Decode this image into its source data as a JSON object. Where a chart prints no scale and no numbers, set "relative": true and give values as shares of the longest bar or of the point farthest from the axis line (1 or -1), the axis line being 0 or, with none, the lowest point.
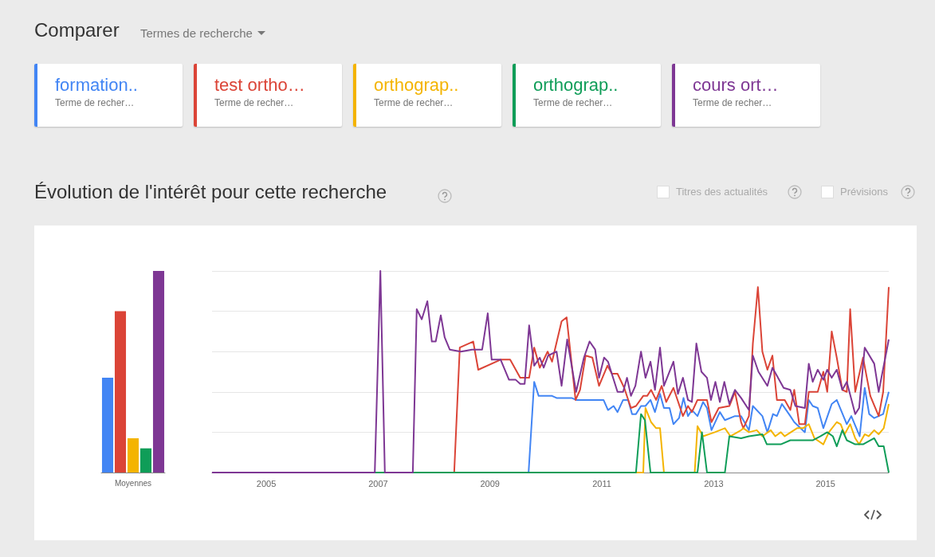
{
  "chart_data": [
    {
      "type": "line",
      "title": "Évolution de l'intérêt pour cette recherche",
      "relative": true,
      "grid": "y",
      "legend": "top",
      "marker": "none",
      "line_style": "solid",
      "annotations": [
        "Comparer",
        "Termes de recherche",
        "Titres des actualités",
        "Prévisions",
        "Terme de recher…",
        "Terme de recher…",
        "Terme de recher…",
        "Terme de recher…",
        "Terme de recher…"
      ],
      "xlim": [
        2004.03,
        2016.13
      ],
      "xticks": [
        2005,
        2007,
        2009,
        2011,
        2013,
        2015
      ],
      "series": [
        {
          "name": "formation..",
          "color": "#4285f4",
          "x": [
            2004.03,
            2009.69,
            2009.79,
            2009.87,
            2010.11,
            2010.19,
            2010.46,
            2010.54,
            2011.03,
            2011.11,
            2011.21,
            2011.28,
            2011.38,
            2011.47,
            2011.54,
            2011.61,
            2011.7,
            2011.78,
            2011.87,
            2011.95,
            2012.04,
            2012.11,
            2012.21,
            2012.28,
            2012.38,
            2012.46,
            2012.54,
            2012.61,
            2012.71,
            2012.81,
            2012.88,
            2012.96,
            2013.11,
            2013.2,
            2013.38,
            2013.49,
            2013.63,
            2013.7,
            2013.87,
            2013.96,
            2014.06,
            2014.13,
            2014.22,
            2014.37,
            2014.44,
            2014.63,
            2014.7,
            2014.77,
            2014.86,
            2014.96,
            2015.11,
            2015.2,
            2015.29,
            2015.38,
            2015.46,
            2015.61,
            2015.7,
            2015.78,
            2015.87,
            2016.03,
            2016.13
          ],
          "values": [
            0,
            0,
            0.45,
            0.38,
            0.38,
            0.37,
            0.37,
            0.36,
            0.36,
            0.31,
            0.33,
            0.3,
            0.36,
            0.36,
            0.29,
            0.29,
            0.33,
            0.33,
            0.36,
            0.3,
            0.39,
            0.32,
            0.32,
            0.24,
            0.27,
            0.37,
            0.28,
            0.31,
            0.28,
            0.35,
            0.32,
            0.21,
            0.3,
            0.26,
            0.28,
            0.28,
            0.21,
            0.33,
            0.28,
            0.2,
            0.29,
            0.28,
            0.34,
            0.28,
            0.25,
            0.2,
            0.36,
            0.33,
            0.32,
            0.22,
            0.34,
            0.36,
            0.3,
            0.24,
            0.28,
            0.18,
            0.42,
            0.29,
            0.27,
            0.29,
            0.4
          ]
        },
        {
          "name": "test ortho…",
          "color": "#db4437",
          "x": [
            2004.03,
            2008.36,
            2008.46,
            2008.7,
            2008.79,
            2009.19,
            2009.36,
            2009.54,
            2009.7,
            2009.79,
            2009.89,
            2010.03,
            2010.11,
            2010.28,
            2010.37,
            2010.53,
            2010.61,
            2010.71,
            2010.83,
            2010.95,
            2011.1,
            2011.18,
            2011.28,
            2011.4,
            2011.52,
            2011.61,
            2011.74,
            2011.81,
            2011.88,
            2011.97,
            2012.07,
            2012.15,
            2012.28,
            2012.45,
            2012.54,
            2012.61,
            2012.71,
            2012.88,
            2012.96,
            2013.09,
            2013.28,
            2013.38,
            2013.49,
            2013.53,
            2013.63,
            2013.7,
            2013.79,
            2013.87,
            2013.96,
            2014.05,
            2014.13,
            2014.27,
            2014.37,
            2014.44,
            2014.53,
            2014.63,
            2014.7,
            2014.86,
            2014.96,
            2015.03,
            2015.11,
            2015.2,
            2015.3,
            2015.38,
            2015.44,
            2015.53,
            2015.67,
            2015.8,
            2015.95,
            2016.03,
            2016.13
          ],
          "values": [
            0,
            0,
            0.62,
            0.65,
            0.51,
            0.56,
            0.56,
            0.47,
            0.47,
            0.62,
            0.52,
            0.6,
            0.55,
            0.75,
            0.77,
            0.36,
            0.41,
            0.58,
            0.57,
            0.43,
            0.53,
            0.49,
            0.49,
            0.42,
            0.32,
            0.33,
            0.38,
            0.38,
            0.41,
            0.36,
            0.43,
            0.35,
            0.42,
            0.28,
            0.33,
            0.3,
            0.36,
            0.36,
            0.25,
            0.32,
            0.33,
            0.4,
            0.25,
            0.22,
            0.28,
            0.64,
            0.92,
            0.6,
            0.51,
            0.58,
            0.36,
            0.36,
            0.31,
            0.41,
            0.24,
            0.24,
            0.4,
            0.4,
            0.5,
            0.4,
            0.7,
            0.57,
            0.41,
            0.4,
            0.81,
            0.4,
            0.57,
            0.38,
            0.28,
            0.4,
            0.92
          ]
        },
        {
          "name": "orthograp..",
          "color": "#f4b400",
          "x": [
            2004.03,
            2011.74,
            2011.78,
            2011.88,
            2011.97,
            2012.04,
            2012.11,
            2012.66,
            2012.71,
            2012.81,
            2013.02,
            2013.2,
            2013.3,
            2013.49,
            2013.53,
            2013.63,
            2013.77,
            2013.87,
            2014.02,
            2014.1,
            2014.2,
            2014.27,
            2014.49,
            2014.6,
            2014.7,
            2014.8,
            2014.96,
            2015.06,
            2015.2,
            2015.27,
            2015.34,
            2015.44,
            2015.53,
            2015.6,
            2015.7,
            2015.77,
            2015.87,
            2015.95,
            2016.04,
            2016.13
          ],
          "values": [
            0,
            0,
            0.32,
            0.25,
            0.22,
            0.22,
            0,
            0,
            0.23,
            0.18,
            0.2,
            0.22,
            0.18,
            0.21,
            0.22,
            0.2,
            0.21,
            0.18,
            0.21,
            0.18,
            0.2,
            0.18,
            0.22,
            0.22,
            0.24,
            0.17,
            0.14,
            0.2,
            0.25,
            0.24,
            0.19,
            0.24,
            0.17,
            0.14,
            0.19,
            0.18,
            0.21,
            0.19,
            0.22,
            0.34
          ]
        },
        {
          "name": "orthograp..",
          "color": "#0f9d58",
          "x": [
            2004.03,
            2011.61,
            2011.7,
            2011.77,
            2011.87,
            2012.71,
            2012.79,
            2012.88,
            2013.2,
            2013.28,
            2013.49,
            2013.63,
            2013.87,
            2013.95,
            2014.2,
            2014.37,
            2014.77,
            2014.91,
            2015.03,
            2015.13,
            2015.2,
            2015.3,
            2015.38,
            2015.53,
            2015.67,
            2015.87,
            2015.95,
            2016.04,
            2016.13
          ],
          "values": [
            0,
            0,
            0.29,
            0.26,
            0,
            0,
            0.2,
            0,
            0,
            0.18,
            0.17,
            0.18,
            0.19,
            0.14,
            0.14,
            0.16,
            0.16,
            0.18,
            0.2,
            0.18,
            0.13,
            0.21,
            0.16,
            0.14,
            0.14,
            0.17,
            0.13,
            0.13,
            0
          ]
        },
        {
          "name": "cours ort…",
          "color": "#7e3794",
          "x": [
            2004.03,
            2006.94,
            2007.04,
            2007.12,
            2007.62,
            2007.69,
            2007.78,
            2007.88,
            2007.96,
            2008.03,
            2008.12,
            2008.19,
            2008.28,
            2008.48,
            2008.68,
            2008.86,
            2008.96,
            2009.03,
            2009.19,
            2009.34,
            2009.46,
            2009.54,
            2009.62,
            2009.7,
            2009.79,
            2009.89,
            2009.96,
            2010.04,
            2010.19,
            2010.28,
            2010.38,
            2010.54,
            2010.68,
            2010.78,
            2010.88,
            2010.95,
            2011.04,
            2011.11,
            2011.28,
            2011.38,
            2011.45,
            2011.52,
            2011.6,
            2011.7,
            2011.78,
            2011.87,
            2011.95,
            2012.04,
            2012.11,
            2012.28,
            2012.36,
            2012.45,
            2012.54,
            2012.61,
            2012.69,
            2012.78,
            2012.88,
            2012.95,
            2013.03,
            2013.11,
            2013.19,
            2013.28,
            2013.38,
            2013.49,
            2013.63,
            2013.7,
            2013.8,
            2013.96,
            2014.05,
            2014.13,
            2014.25,
            2014.37,
            2014.46,
            2014.63,
            2014.7,
            2014.77,
            2014.86,
            2014.96,
            2015.03,
            2015.11,
            2015.2,
            2015.3,
            2015.38,
            2015.53,
            2015.6,
            2015.7,
            2015.87,
            2015.95,
            2016.13
          ],
          "values": [
            0,
            0,
            1,
            0,
            0,
            0.81,
            0.76,
            0.85,
            0.65,
            0.65,
            0.78,
            0.67,
            0.61,
            0.6,
            0.61,
            0.61,
            0.79,
            0.56,
            0.56,
            0.46,
            0.46,
            0.44,
            0.44,
            0.73,
            0.53,
            0.57,
            0.52,
            0.58,
            0.6,
            0.43,
            0.66,
            0.4,
            0.57,
            0.65,
            0.61,
            0.47,
            0.57,
            0.55,
            0.4,
            0.4,
            0.47,
            0.38,
            0.43,
            0.6,
            0.47,
            0.55,
            0.41,
            0.62,
            0.43,
            0.55,
            0.39,
            0.47,
            0.36,
            0.35,
            0.64,
            0.5,
            0.47,
            0.36,
            0.45,
            0.35,
            0.45,
            0.34,
            0.41,
            0.37,
            0.31,
            0.58,
            0.5,
            0.43,
            0.52,
            0.48,
            0.42,
            0.41,
            0.33,
            0.32,
            0.54,
            0.45,
            0.51,
            0.46,
            0.51,
            0.47,
            0.51,
            0.41,
            0.45,
            0.29,
            0.32,
            0.62,
            0.54,
            0.4,
            0.66
          ]
        }
      ]
    },
    {
      "type": "bar",
      "relative": true,
      "categories": [
        null,
        null,
        "Moyennes",
        null,
        null
      ],
      "values": [
        0.47,
        0.8,
        0.17,
        0.12,
        1
      ],
      "colors": [
        "#4285f4",
        "#db4437",
        "#f4b400",
        "#0f9d58",
        "#7e3794"
      ]
    }
  ]
}
